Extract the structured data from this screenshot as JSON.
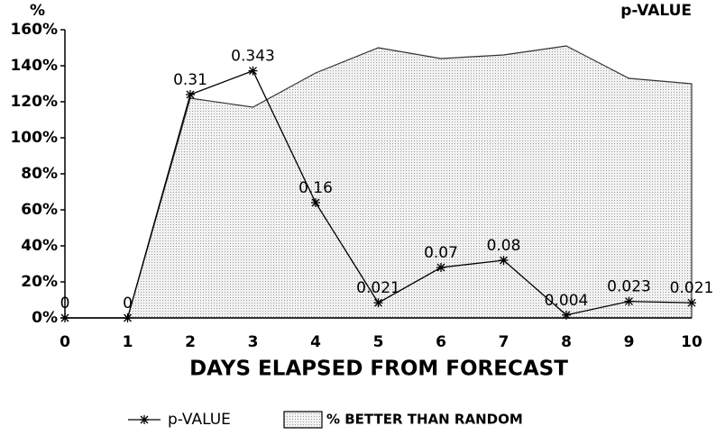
{
  "chart_data": {
    "type": "line",
    "y_label": "%",
    "y2_label": "p-VALUE",
    "x_label": "DAYS ELAPSED FROM FORECAST",
    "categories": [
      "0",
      "1",
      "2",
      "3",
      "4",
      "5",
      "6",
      "7",
      "8",
      "9",
      "10"
    ],
    "ylim": [
      0,
      160
    ],
    "yticks": [
      {
        "value": 0,
        "label": "0%"
      },
      {
        "value": 20,
        "label": "20%"
      },
      {
        "value": 40,
        "label": "40%"
      },
      {
        "value": 60,
        "label": "60%"
      },
      {
        "value": 80,
        "label": "80%"
      },
      {
        "value": 100,
        "label": "100%"
      },
      {
        "value": 120,
        "label": "120%"
      },
      {
        "value": 140,
        "label": "140%"
      },
      {
        "value": 160,
        "label": "160%"
      }
    ],
    "y2lim": [
      0,
      0.4
    ],
    "series": [
      {
        "name": "p-VALUE",
        "type": "line",
        "axis": "y2",
        "color": "#000000",
        "values": [
          0,
          0,
          0.31,
          0.343,
          0.16,
          0.021,
          0.07,
          0.08,
          0.004,
          0.023,
          0.021
        ]
      },
      {
        "name": "% BETTER THAN RANDOM",
        "type": "area",
        "color": "#bdbdbd",
        "values": [
          0,
          0,
          122,
          117,
          136,
          150,
          144,
          146,
          151,
          133,
          130
        ]
      }
    ]
  }
}
